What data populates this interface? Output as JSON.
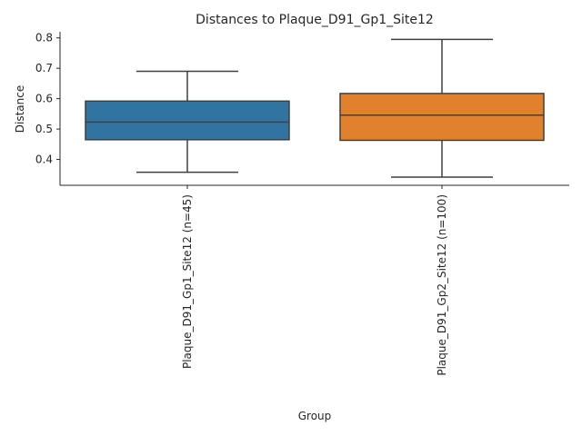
{
  "chart_data": {
    "type": "box",
    "title": "Distances to Plaque_D91_Gp1_Site12",
    "xlabel": "Group",
    "ylabel": "Distance",
    "ylim": [
      0.315,
      0.82
    ],
    "yticks": [
      0.4,
      0.5,
      0.6,
      0.7,
      0.8
    ],
    "ytick_labels": [
      "0.4",
      "0.5",
      "0.6",
      "0.7",
      "0.8"
    ],
    "grid": false,
    "categories": [
      "Plaque_D91_Gp1_Site12 (n=45)",
      "Plaque_D91_Gp2_Site12 (n=100)"
    ],
    "boxes": [
      {
        "whisker_low": 0.358,
        "q1": 0.465,
        "median": 0.523,
        "q3": 0.592,
        "whisker_high": 0.69,
        "color": "#3274a1"
      },
      {
        "whisker_low": 0.342,
        "q1": 0.463,
        "median": 0.546,
        "q3": 0.617,
        "whisker_high": 0.795,
        "color": "#e1812c"
      }
    ]
  }
}
